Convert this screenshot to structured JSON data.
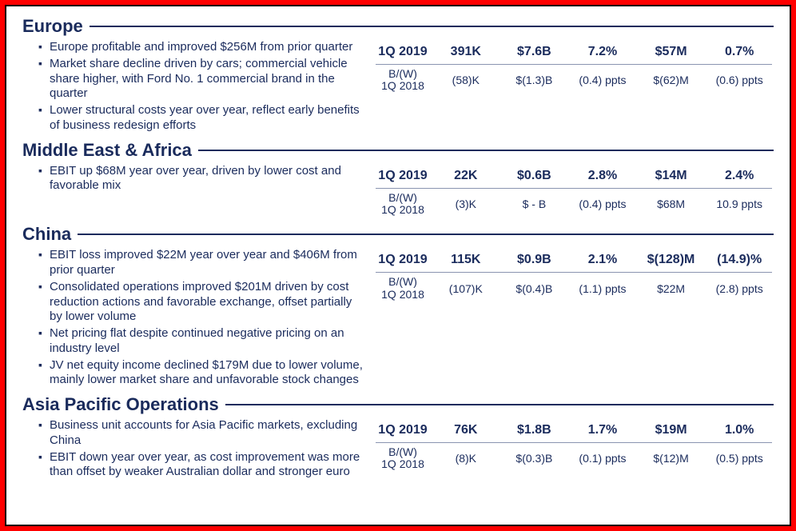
{
  "colors": {
    "text": "#1a2b5c",
    "border_red": "#ff0000",
    "border_black": "#000000",
    "page_bg": "#ffffff",
    "divider": "#8a94b0"
  },
  "sections": [
    {
      "title": "Europe",
      "bullets": [
        "Europe profitable and improved $256M from prior quarter",
        "Market share decline driven by cars; commercial vehicle share higher, with Ford No. 1 commercial brand in the quarter",
        "Lower structural costs year over year, reflect early benefits of business redesign efforts"
      ],
      "row_label": "1Q 2019",
      "row": [
        "391K",
        "$7.6B",
        "7.2%",
        "$57M",
        "0.7%"
      ],
      "comp_label_a": "B/(W)",
      "comp_label_b": "1Q 2018",
      "comp": [
        "(58)K",
        "$(1.3)B",
        "(0.4) ppts",
        "$(62)M",
        "(0.6) ppts"
      ]
    },
    {
      "title": "Middle East & Africa",
      "bullets": [
        "EBIT up $68M year over year, driven by lower cost and favorable mix"
      ],
      "row_label": "1Q 2019",
      "row": [
        "22K",
        "$0.6B",
        "2.8%",
        "$14M",
        "2.4%"
      ],
      "comp_label_a": "B/(W)",
      "comp_label_b": "1Q 2018",
      "comp": [
        "(3)K",
        "$ - B",
        "(0.4) ppts",
        "$68M",
        "10.9 ppts"
      ]
    },
    {
      "title": "China",
      "bullets": [
        "EBIT loss improved $22M year over year and $406M from prior quarter",
        "Consolidated operations improved $201M driven by cost reduction actions and favorable exchange, offset partially by lower volume",
        "Net pricing flat despite continued negative pricing on an industry level",
        "JV net equity income declined $179M due to lower volume, mainly lower market share and unfavorable stock changes"
      ],
      "row_label": "1Q 2019",
      "row": [
        "115K",
        "$0.9B",
        "2.1%",
        "$(128)M",
        "(14.9)%"
      ],
      "comp_label_a": "B/(W)",
      "comp_label_b": "1Q 2018",
      "comp": [
        "(107)K",
        "$(0.4)B",
        "(1.1) ppts",
        "$22M",
        "(2.8) ppts"
      ]
    },
    {
      "title": "Asia Pacific Operations",
      "bullets": [
        "Business unit accounts for Asia Pacific markets, excluding China",
        "EBIT down year over year, as cost improvement was more than offset by weaker Australian dollar and stronger euro"
      ],
      "row_label": "1Q 2019",
      "row": [
        "76K",
        "$1.8B",
        "1.7%",
        "$19M",
        "1.0%"
      ],
      "comp_label_a": "B/(W)",
      "comp_label_b": "1Q 2018",
      "comp": [
        "(8)K",
        "$(0.3)B",
        "(0.1) ppts",
        "$(12)M",
        "(0.5) ppts"
      ]
    }
  ]
}
